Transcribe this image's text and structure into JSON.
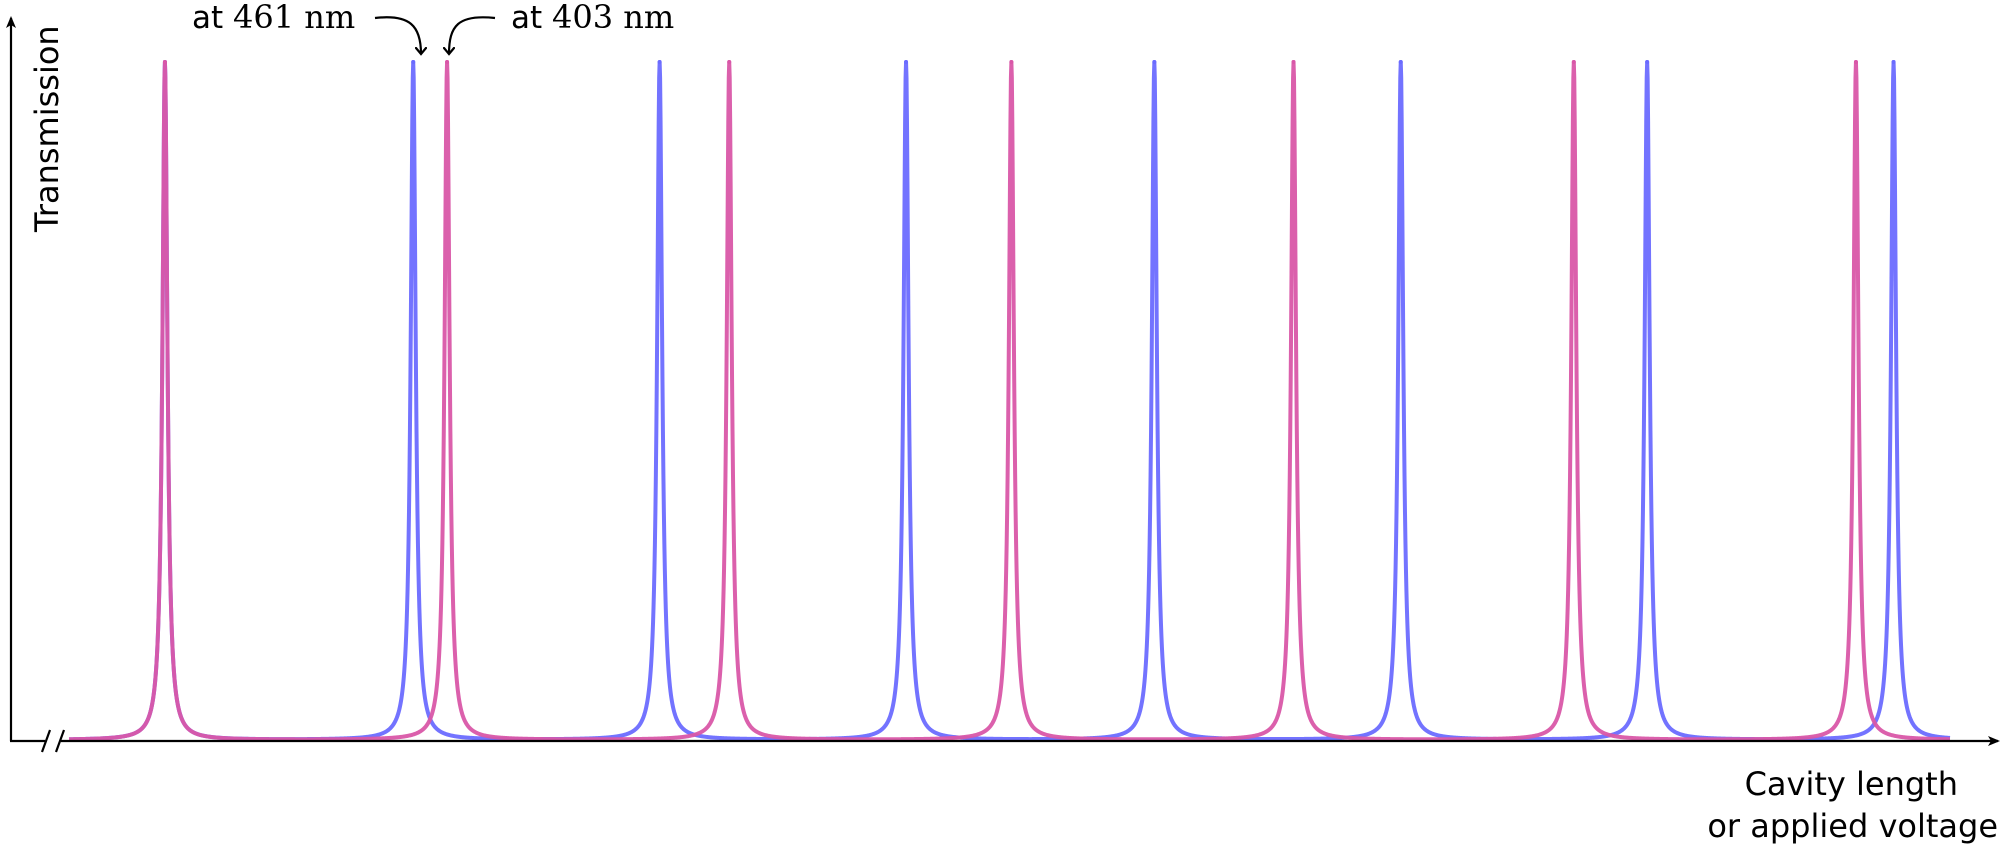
{
  "chart_data": {
    "type": "line",
    "ylabel": "Transmission",
    "xlabel_line1": "Cavity length",
    "xlabel_line2": "or applied voltage",
    "annotations": [
      {
        "prefix": "at ",
        "value": "461 nm",
        "series": "461 nm"
      },
      {
        "prefix": "at ",
        "value": "403 nm",
        "series": "403 nm"
      }
    ],
    "axis_break": true,
    "grid": false,
    "series": [
      {
        "name": "461 nm",
        "color": "#6b6bff",
        "peaks": [
          0.051,
          0.183,
          0.314,
          0.445,
          0.577,
          0.708,
          0.839,
          0.97
        ],
        "peak_value": 1.0
      },
      {
        "name": "403 nm",
        "color": "#d957a8",
        "peaks": [
          0.051,
          0.201,
          0.351,
          0.501,
          0.651,
          0.8,
          0.95
        ],
        "peak_value": 1.0
      }
    ],
    "xlim": [
      0,
      1
    ],
    "ylim": [
      0,
      1
    ]
  }
}
